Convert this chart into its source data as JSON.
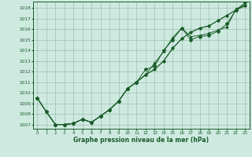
{
  "xlabel": "Graphe pression niveau de la mer (hPa)",
  "bg_color": "#ceeae0",
  "grid_color": "#9dbfb0",
  "line_color": "#1a5c2a",
  "x_values": [
    0,
    1,
    2,
    3,
    4,
    5,
    6,
    7,
    8,
    9,
    10,
    11,
    12,
    13,
    14,
    15,
    16,
    17,
    18,
    19,
    20,
    21,
    22,
    23
  ],
  "series1": [
    1009.5,
    1008.2,
    1007.0,
    1007.0,
    1007.1,
    1007.5,
    1007.2,
    1007.8,
    1008.4,
    1009.2,
    1010.4,
    1011.0,
    1011.7,
    1012.2,
    1013.0,
    1014.2,
    1015.1,
    1015.7,
    1016.1,
    1016.3,
    1016.8,
    1017.3,
    1017.8,
    1018.2
  ],
  "series2": [
    1009.5,
    1008.2,
    1007.0,
    1007.0,
    1007.1,
    1007.5,
    1007.2,
    1007.8,
    1008.4,
    1009.2,
    1010.4,
    1011.0,
    1011.7,
    1012.2,
    1013.0,
    1014.2,
    1015.1,
    1015.7,
    1016.1,
    1016.3,
    1016.8,
    1017.3,
    1017.8,
    1018.2
  ],
  "series3": [
    1009.5,
    1008.2,
    1007.0,
    1007.0,
    1007.1,
    1007.5,
    1007.2,
    1007.8,
    1008.4,
    1009.2,
    1010.4,
    1011.0,
    1011.7,
    1012.8,
    1013.9,
    1015.2,
    1016.1,
    1015.3,
    1015.4,
    1015.6,
    1015.9,
    1016.2,
    1017.9,
    1018.3
  ],
  "series4": [
    1009.5,
    1008.2,
    1007.0,
    1007.0,
    1007.1,
    1007.5,
    1007.2,
    1007.8,
    1008.4,
    1009.2,
    1010.4,
    1011.0,
    1012.2,
    1012.5,
    1014.0,
    1015.0,
    1016.1,
    1015.0,
    1015.3,
    1015.4,
    1015.8,
    1016.5,
    1017.8,
    1018.5
  ],
  "ylim": [
    1006.6,
    1018.6
  ],
  "yticks": [
    1007,
    1008,
    1009,
    1010,
    1011,
    1012,
    1013,
    1014,
    1015,
    1016,
    1017,
    1018
  ],
  "xlim": [
    -0.5,
    23.5
  ],
  "xticks": [
    0,
    1,
    2,
    3,
    4,
    5,
    6,
    7,
    8,
    9,
    10,
    11,
    12,
    13,
    14,
    15,
    16,
    17,
    18,
    19,
    20,
    21,
    22,
    23
  ]
}
